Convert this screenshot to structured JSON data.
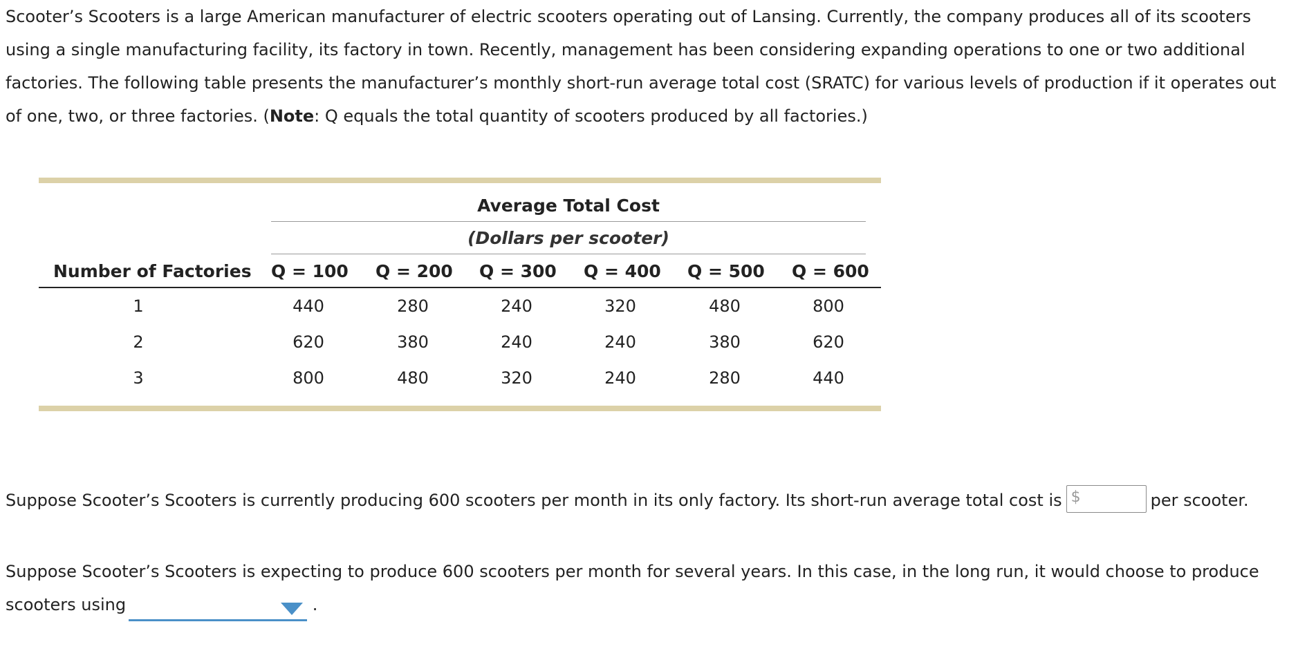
{
  "intro": {
    "text_before_note": "Scooter’s Scooters is a large American manufacturer of electric scooters operating out of Lansing. Currently, the company produces all of its scooters using a single manufacturing facility, its factory in town. Recently, management has been considering expanding operations to one or two additional factories. The following table presents the manufacturer’s monthly short-run average total cost (SRATC) for various levels of production if it operates out of one, two, or three factories. (",
    "note_label": "Note",
    "text_after_note": ": Q equals the total quantity of scooters produced by all factories.)"
  },
  "table": {
    "title": "Average Total Cost",
    "subtitle": "(Dollars per scooter)",
    "row_header": "Number of Factories",
    "columns": [
      "Q = 100",
      "Q = 200",
      "Q = 300",
      "Q = 400",
      "Q = 500",
      "Q = 600"
    ],
    "rows": [
      {
        "factories": "1",
        "values": [
          "440",
          "280",
          "240",
          "320",
          "480",
          "800"
        ]
      },
      {
        "factories": "2",
        "values": [
          "620",
          "380",
          "240",
          "240",
          "380",
          "620"
        ]
      },
      {
        "factories": "3",
        "values": [
          "800",
          "480",
          "320",
          "240",
          "280",
          "440"
        ]
      }
    ]
  },
  "question1": {
    "text_before": "Suppose Scooter’s Scooters is currently producing 600 scooters per month in its only factory. Its short-run average total cost is",
    "currency_symbol": "$",
    "input_value": "",
    "text_after": "per scooter."
  },
  "question2": {
    "text_before": "Suppose Scooter’s Scooters is expecting to produce 600 scooters per month for several years. In this case, in the long run, it would choose to produce scooters using",
    "selected_option": "",
    "text_after": "."
  },
  "colors": {
    "table_band": "#dcd1a8",
    "dropdown_accent": "#4a90c8"
  }
}
